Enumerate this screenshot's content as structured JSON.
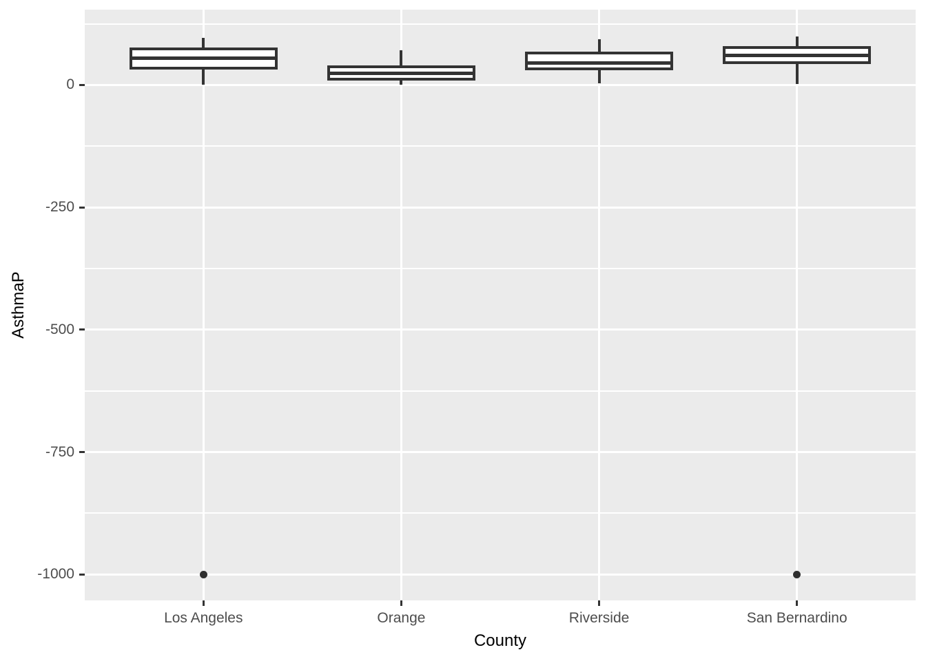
{
  "figure": {
    "background": "#FFFFFF",
    "panel_background": "#EBEBEB",
    "gridline_color": "#FFFFFF",
    "box_border_color": "#333333",
    "box_fill_color": "#FFFFFF",
    "outlier_color": "#2e2e2e",
    "tick_mark_color": "#333333",
    "tick_label_color": "#4D4D4D",
    "axis_title_color": "#000000"
  },
  "chart_data": {
    "type": "boxplot",
    "xlabel": "County",
    "ylabel": "AsthmaP",
    "categories": [
      "Los Angeles",
      "Orange",
      "Riverside",
      "San Bernardino"
    ],
    "series": [
      {
        "name": "Los Angeles",
        "min": 0,
        "q1": 31,
        "median": 55,
        "q3": 76,
        "max": 96,
        "outliers": [
          -1000
        ]
      },
      {
        "name": "Orange",
        "min": 0,
        "q1": 9,
        "median": 24,
        "q3": 40,
        "max": 71,
        "outliers": []
      },
      {
        "name": "Riverside",
        "min": 3,
        "q1": 30,
        "median": 45,
        "q3": 68,
        "max": 93,
        "outliers": []
      },
      {
        "name": "San Bernardino",
        "min": 2,
        "q1": 43,
        "median": 61,
        "q3": 79,
        "max": 99,
        "outliers": [
          -1000
        ]
      }
    ],
    "ylim": [
      -1053,
      154
    ],
    "y_major_ticks": [
      0,
      -250,
      -500,
      -750,
      -1000
    ],
    "y_tick_labels": [
      "0",
      "-250",
      "-500",
      "-750",
      "-1000"
    ],
    "y_minor_gridlines": [
      125,
      -125,
      -375,
      -625,
      -875
    ],
    "grid": "on",
    "legend_position": "none"
  }
}
